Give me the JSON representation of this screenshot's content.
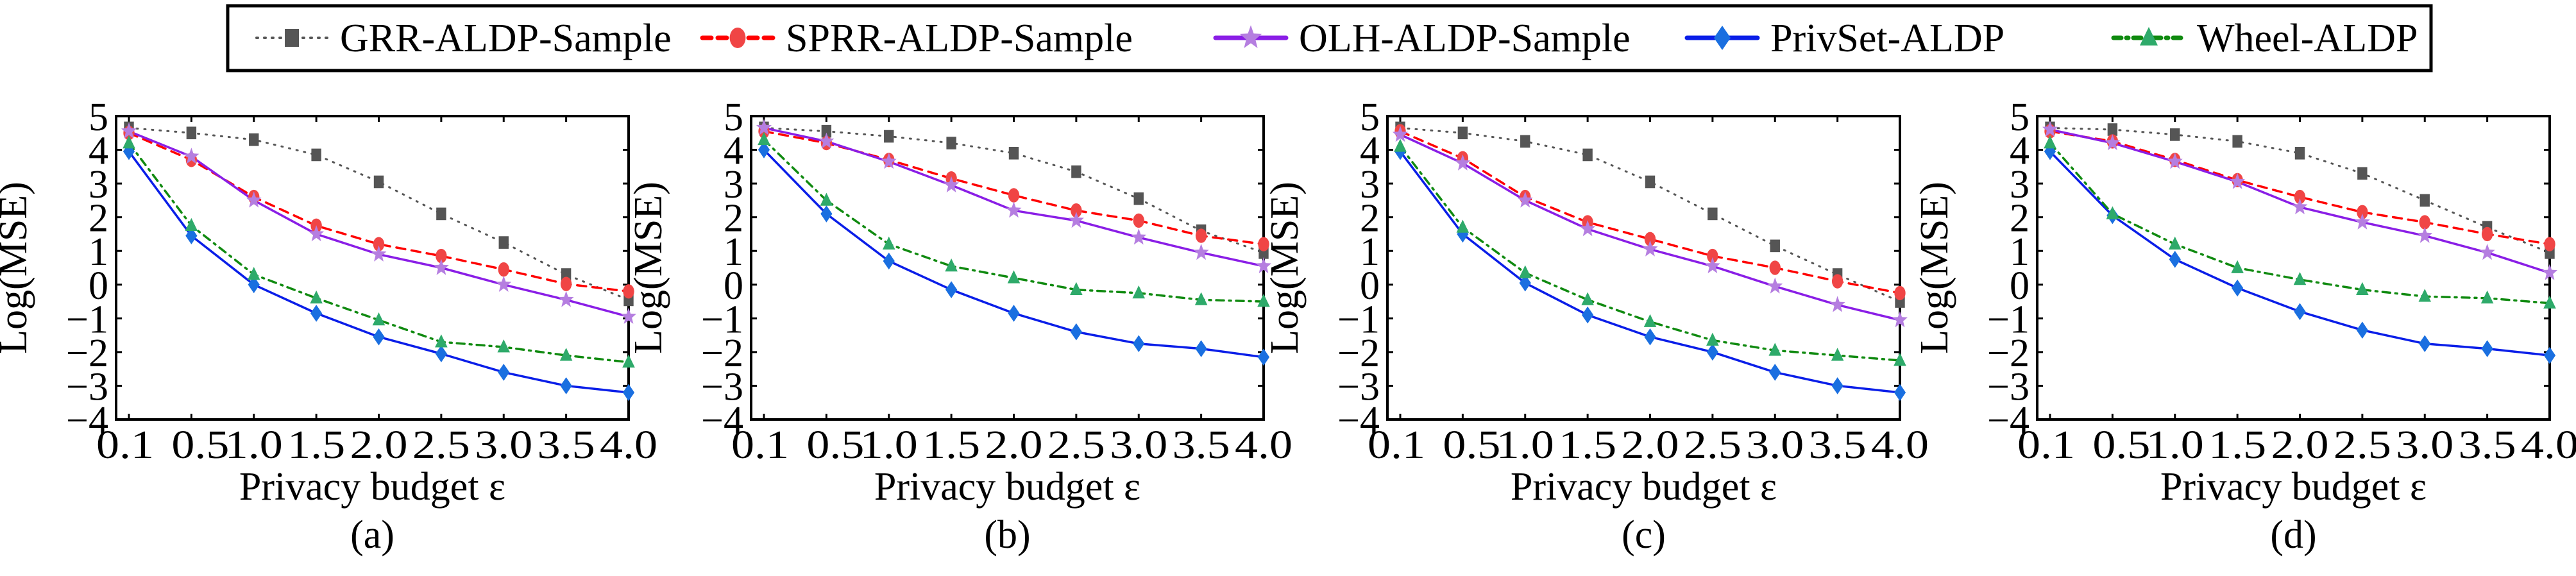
{
  "legend": {
    "placement": "top-center",
    "entries": [
      {
        "key": "grr",
        "label": "GRR-ALDP-Sample",
        "color": "#555555",
        "line_color": "#555555",
        "dash": "dotted",
        "marker": "square"
      },
      {
        "key": "sprr",
        "label": "SPRR-ALDP-Sample",
        "color": "#f04545",
        "line_color": "#ff0000",
        "dash": "dashed",
        "marker": "circle"
      },
      {
        "key": "olh",
        "label": "OLH-ALDP-Sample",
        "color": "#b57ee0",
        "line_color": "#8a1ee6",
        "dash": "solid",
        "marker": "star"
      },
      {
        "key": "privset",
        "label": "PrivSet-ALDP",
        "color": "#1a6fe0",
        "line_color": "#0a1ee8",
        "dash": "solid",
        "marker": "diamond"
      },
      {
        "key": "wheel",
        "label": "Wheel-ALDP",
        "color": "#2eaa6a",
        "line_color": "#108a10",
        "dash": "dashdot",
        "marker": "triangle"
      }
    ]
  },
  "chart_data": [
    {
      "type": "line",
      "caption": "(a)",
      "xlabel": "Privacy budget ε",
      "ylabel": "Log(MSE)",
      "x": [
        0.1,
        0.5,
        1.0,
        1.5,
        2.0,
        2.5,
        3.0,
        3.5,
        4.0
      ],
      "xtick_labels": [
        "0.1",
        "0.5",
        "1.0",
        "1.5",
        "2.0",
        "2.5",
        "3.0",
        "3.5",
        "4.0"
      ],
      "ylim": [
        -4,
        5
      ],
      "yticks": [
        5,
        4,
        3,
        2,
        1,
        0,
        -1,
        -2,
        -3,
        -4
      ],
      "ytick_labels": [
        "5",
        "4",
        "3",
        "2",
        "1",
        "0",
        "−1",
        "−2",
        "−3",
        "−4"
      ],
      "grid": false,
      "series": [
        {
          "key": "grr",
          "name": "GRR-ALDP-Sample",
          "values": [
            4.65,
            4.5,
            4.3,
            3.85,
            3.05,
            2.1,
            1.25,
            0.3,
            -0.45
          ]
        },
        {
          "key": "sprr",
          "name": "SPRR-ALDP-Sample",
          "values": [
            4.5,
            3.7,
            2.6,
            1.75,
            1.2,
            0.85,
            0.45,
            0.02,
            -0.2
          ]
        },
        {
          "key": "olh",
          "name": "OLH-ALDP-Sample",
          "values": [
            4.55,
            3.8,
            2.5,
            1.5,
            0.9,
            0.5,
            0.0,
            -0.45,
            -0.95
          ]
        },
        {
          "key": "privset",
          "name": "PrivSet-ALDP",
          "values": [
            3.95,
            1.45,
            0.0,
            -0.85,
            -1.55,
            -2.05,
            -2.6,
            -3.0,
            -3.2
          ]
        },
        {
          "key": "wheel",
          "name": "Wheel-ALDP",
          "values": [
            4.2,
            1.75,
            0.3,
            -0.4,
            -1.05,
            -1.7,
            -1.85,
            -2.1,
            -2.3
          ]
        }
      ]
    },
    {
      "type": "line",
      "caption": "(b)",
      "xlabel": "Privacy budget ε",
      "ylabel": "Log(MSE)",
      "x": [
        0.1,
        0.5,
        1.0,
        1.5,
        2.0,
        2.5,
        3.0,
        3.5,
        4.0
      ],
      "xtick_labels": [
        "0.1",
        "0.5",
        "1.0",
        "1.5",
        "2.0",
        "2.5",
        "3.0",
        "3.5",
        "4.0"
      ],
      "ylim": [
        -4,
        5
      ],
      "yticks": [
        5,
        4,
        3,
        2,
        1,
        0,
        -1,
        -2,
        -3,
        -4
      ],
      "ytick_labels": [
        "5",
        "4",
        "3",
        "2",
        "1",
        "0",
        "−1",
        "−2",
        "−3",
        "−4"
      ],
      "grid": false,
      "series": [
        {
          "key": "grr",
          "name": "GRR-ALDP-Sample",
          "values": [
            4.65,
            4.55,
            4.4,
            4.2,
            3.9,
            3.35,
            2.55,
            1.6,
            0.95
          ]
        },
        {
          "key": "sprr",
          "name": "SPRR-ALDP-Sample",
          "values": [
            4.55,
            4.2,
            3.7,
            3.15,
            2.65,
            2.2,
            1.9,
            1.45,
            1.2
          ]
        },
        {
          "key": "olh",
          "name": "OLH-ALDP-Sample",
          "values": [
            4.65,
            4.25,
            3.65,
            2.95,
            2.2,
            1.9,
            1.4,
            0.95,
            0.55
          ]
        },
        {
          "key": "privset",
          "name": "PrivSet-ALDP",
          "values": [
            4.0,
            2.1,
            0.7,
            -0.15,
            -0.85,
            -1.4,
            -1.75,
            -1.9,
            -2.15
          ]
        },
        {
          "key": "wheel",
          "name": "Wheel-ALDP",
          "values": [
            4.3,
            2.5,
            1.2,
            0.55,
            0.2,
            -0.15,
            -0.25,
            -0.45,
            -0.5
          ]
        }
      ]
    },
    {
      "type": "line",
      "caption": "(c)",
      "xlabel": "Privacy budget ε",
      "ylabel": "Log(MSE)",
      "x": [
        0.1,
        0.5,
        1.0,
        1.5,
        2.0,
        2.5,
        3.0,
        3.5,
        4.0
      ],
      "xtick_labels": [
        "0.1",
        "0.5",
        "1.0",
        "1.5",
        "2.0",
        "2.5",
        "3.0",
        "3.5",
        "4.0"
      ],
      "ylim": [
        -4,
        5
      ],
      "yticks": [
        5,
        4,
        3,
        2,
        1,
        0,
        -1,
        -2,
        -3,
        -4
      ],
      "ytick_labels": [
        "5",
        "4",
        "3",
        "2",
        "1",
        "0",
        "−1",
        "−2",
        "−3",
        "−4"
      ],
      "grid": false,
      "series": [
        {
          "key": "grr",
          "name": "GRR-ALDP-Sample",
          "values": [
            4.65,
            4.5,
            4.25,
            3.85,
            3.05,
            2.1,
            1.15,
            0.3,
            -0.5
          ]
        },
        {
          "key": "sprr",
          "name": "SPRR-ALDP-Sample",
          "values": [
            4.55,
            3.75,
            2.6,
            1.85,
            1.35,
            0.85,
            0.5,
            0.1,
            -0.25
          ]
        },
        {
          "key": "olh",
          "name": "OLH-ALDP-Sample",
          "values": [
            4.45,
            3.6,
            2.5,
            1.65,
            1.05,
            0.55,
            -0.05,
            -0.6,
            -1.05
          ]
        },
        {
          "key": "privset",
          "name": "PrivSet-ALDP",
          "values": [
            3.95,
            1.5,
            0.05,
            -0.9,
            -1.55,
            -2.0,
            -2.6,
            -3.0,
            -3.2
          ]
        },
        {
          "key": "wheel",
          "name": "Wheel-ALDP",
          "values": [
            4.1,
            1.7,
            0.35,
            -0.45,
            -1.1,
            -1.65,
            -1.95,
            -2.1,
            -2.25
          ]
        }
      ]
    },
    {
      "type": "line",
      "caption": "(d)",
      "xlabel": "Privacy budget ε",
      "ylabel": "Log(MSE)",
      "x": [
        0.1,
        0.5,
        1.0,
        1.5,
        2.0,
        2.5,
        3.0,
        3.5,
        4.0
      ],
      "xtick_labels": [
        "0.1",
        "0.5",
        "1.0",
        "1.5",
        "2.0",
        "2.5",
        "3.0",
        "3.5",
        "4.0"
      ],
      "ylim": [
        -4,
        5
      ],
      "yticks": [
        5,
        4,
        3,
        2,
        1,
        0,
        -1,
        -2,
        -3,
        -4
      ],
      "ytick_labels": [
        "5",
        "4",
        "3",
        "2",
        "1",
        "0",
        "−1",
        "−2",
        "−3",
        "−4"
      ],
      "grid": false,
      "series": [
        {
          "key": "grr",
          "name": "GRR-ALDP-Sample",
          "values": [
            4.65,
            4.6,
            4.45,
            4.25,
            3.9,
            3.3,
            2.5,
            1.7,
            0.95
          ]
        },
        {
          "key": "sprr",
          "name": "SPRR-ALDP-Sample",
          "values": [
            4.55,
            4.25,
            3.7,
            3.1,
            2.6,
            2.15,
            1.85,
            1.5,
            1.2
          ]
        },
        {
          "key": "olh",
          "name": "OLH-ALDP-Sample",
          "values": [
            4.6,
            4.2,
            3.65,
            3.05,
            2.3,
            1.85,
            1.45,
            0.95,
            0.35
          ]
        },
        {
          "key": "privset",
          "name": "PrivSet-ALDP",
          "values": [
            3.95,
            2.05,
            0.75,
            -0.1,
            -0.8,
            -1.35,
            -1.75,
            -1.9,
            -2.1
          ]
        },
        {
          "key": "wheel",
          "name": "Wheel-ALDP",
          "values": [
            4.2,
            2.1,
            1.2,
            0.5,
            0.15,
            -0.15,
            -0.35,
            -0.4,
            -0.55
          ]
        }
      ]
    }
  ]
}
